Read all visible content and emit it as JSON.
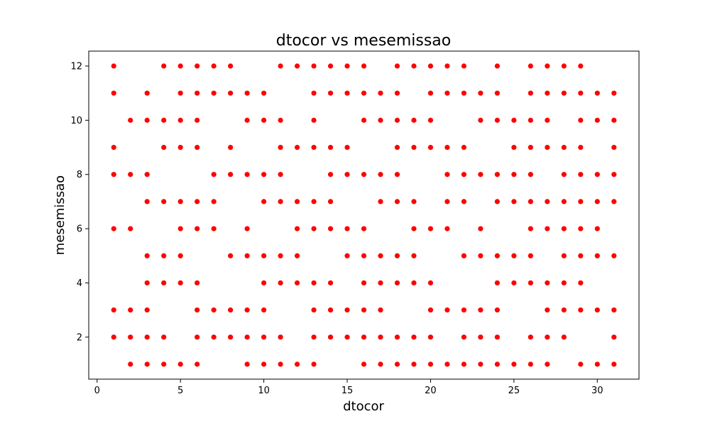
{
  "chart_data": {
    "type": "scatter",
    "title": "dtocor vs mesemissao",
    "xlabel": "dtocor",
    "ylabel": "mesemissao",
    "xlim": [
      -0.5,
      32.5
    ],
    "ylim": [
      0.45,
      12.55
    ],
    "xticks": [
      0,
      5,
      10,
      15,
      20,
      25,
      30
    ],
    "yticks": [
      2,
      4,
      6,
      8,
      10,
      12
    ],
    "grid": false,
    "marker_color": "#ff0000",
    "series": [
      {
        "points": [
          [
            1,
            12
          ],
          [
            4,
            12
          ],
          [
            5,
            12
          ],
          [
            6,
            12
          ],
          [
            7,
            12
          ],
          [
            8,
            12
          ],
          [
            11,
            12
          ],
          [
            12,
            12
          ],
          [
            13,
            12
          ],
          [
            14,
            12
          ],
          [
            15,
            12
          ],
          [
            16,
            12
          ],
          [
            18,
            12
          ],
          [
            19,
            12
          ],
          [
            20,
            12
          ],
          [
            21,
            12
          ],
          [
            22,
            12
          ],
          [
            24,
            12
          ],
          [
            26,
            12
          ],
          [
            27,
            12
          ],
          [
            28,
            12
          ],
          [
            29,
            12
          ],
          [
            1,
            11
          ],
          [
            3,
            11
          ],
          [
            5,
            11
          ],
          [
            6,
            11
          ],
          [
            7,
            11
          ],
          [
            8,
            11
          ],
          [
            9,
            11
          ],
          [
            10,
            11
          ],
          [
            13,
            11
          ],
          [
            14,
            11
          ],
          [
            15,
            11
          ],
          [
            16,
            11
          ],
          [
            17,
            11
          ],
          [
            18,
            11
          ],
          [
            20,
            11
          ],
          [
            21,
            11
          ],
          [
            22,
            11
          ],
          [
            23,
            11
          ],
          [
            24,
            11
          ],
          [
            26,
            11
          ],
          [
            27,
            11
          ],
          [
            28,
            11
          ],
          [
            29,
            11
          ],
          [
            30,
            11
          ],
          [
            31,
            11
          ],
          [
            2,
            10
          ],
          [
            3,
            10
          ],
          [
            4,
            10
          ],
          [
            5,
            10
          ],
          [
            6,
            10
          ],
          [
            9,
            10
          ],
          [
            10,
            10
          ],
          [
            11,
            10
          ],
          [
            13,
            10
          ],
          [
            16,
            10
          ],
          [
            17,
            10
          ],
          [
            18,
            10
          ],
          [
            19,
            10
          ],
          [
            20,
            10
          ],
          [
            23,
            10
          ],
          [
            24,
            10
          ],
          [
            25,
            10
          ],
          [
            26,
            10
          ],
          [
            27,
            10
          ],
          [
            29,
            10
          ],
          [
            30,
            10
          ],
          [
            31,
            10
          ],
          [
            1,
            9
          ],
          [
            4,
            9
          ],
          [
            5,
            9
          ],
          [
            6,
            9
          ],
          [
            8,
            9
          ],
          [
            11,
            9
          ],
          [
            12,
            9
          ],
          [
            13,
            9
          ],
          [
            14,
            9
          ],
          [
            15,
            9
          ],
          [
            18,
            9
          ],
          [
            19,
            9
          ],
          [
            20,
            9
          ],
          [
            21,
            9
          ],
          [
            22,
            9
          ],
          [
            25,
            9
          ],
          [
            26,
            9
          ],
          [
            27,
            9
          ],
          [
            28,
            9
          ],
          [
            29,
            9
          ],
          [
            31,
            9
          ],
          [
            1,
            8
          ],
          [
            2,
            8
          ],
          [
            3,
            8
          ],
          [
            7,
            8
          ],
          [
            8,
            8
          ],
          [
            9,
            8
          ],
          [
            10,
            8
          ],
          [
            11,
            8
          ],
          [
            14,
            8
          ],
          [
            15,
            8
          ],
          [
            16,
            8
          ],
          [
            17,
            8
          ],
          [
            18,
            8
          ],
          [
            21,
            8
          ],
          [
            22,
            8
          ],
          [
            23,
            8
          ],
          [
            24,
            8
          ],
          [
            25,
            8
          ],
          [
            26,
            8
          ],
          [
            28,
            8
          ],
          [
            29,
            8
          ],
          [
            30,
            8
          ],
          [
            31,
            8
          ],
          [
            3,
            7
          ],
          [
            4,
            7
          ],
          [
            5,
            7
          ],
          [
            6,
            7
          ],
          [
            7,
            7
          ],
          [
            10,
            7
          ],
          [
            11,
            7
          ],
          [
            12,
            7
          ],
          [
            13,
            7
          ],
          [
            14,
            7
          ],
          [
            17,
            7
          ],
          [
            18,
            7
          ],
          [
            19,
            7
          ],
          [
            21,
            7
          ],
          [
            22,
            7
          ],
          [
            24,
            7
          ],
          [
            25,
            7
          ],
          [
            26,
            7
          ],
          [
            27,
            7
          ],
          [
            28,
            7
          ],
          [
            29,
            7
          ],
          [
            30,
            7
          ],
          [
            31,
            7
          ],
          [
            1,
            6
          ],
          [
            2,
            6
          ],
          [
            5,
            6
          ],
          [
            6,
            6
          ],
          [
            7,
            6
          ],
          [
            9,
            6
          ],
          [
            12,
            6
          ],
          [
            13,
            6
          ],
          [
            14,
            6
          ],
          [
            15,
            6
          ],
          [
            16,
            6
          ],
          [
            19,
            6
          ],
          [
            20,
            6
          ],
          [
            21,
            6
          ],
          [
            23,
            6
          ],
          [
            26,
            6
          ],
          [
            27,
            6
          ],
          [
            28,
            6
          ],
          [
            29,
            6
          ],
          [
            30,
            6
          ],
          [
            3,
            5
          ],
          [
            4,
            5
          ],
          [
            5,
            5
          ],
          [
            8,
            5
          ],
          [
            9,
            5
          ],
          [
            10,
            5
          ],
          [
            11,
            5
          ],
          [
            12,
            5
          ],
          [
            15,
            5
          ],
          [
            16,
            5
          ],
          [
            17,
            5
          ],
          [
            18,
            5
          ],
          [
            19,
            5
          ],
          [
            22,
            5
          ],
          [
            23,
            5
          ],
          [
            24,
            5
          ],
          [
            25,
            5
          ],
          [
            26,
            5
          ],
          [
            28,
            5
          ],
          [
            29,
            5
          ],
          [
            30,
            5
          ],
          [
            31,
            5
          ],
          [
            3,
            4
          ],
          [
            4,
            4
          ],
          [
            5,
            4
          ],
          [
            6,
            4
          ],
          [
            10,
            4
          ],
          [
            11,
            4
          ],
          [
            12,
            4
          ],
          [
            13,
            4
          ],
          [
            14,
            4
          ],
          [
            16,
            4
          ],
          [
            17,
            4
          ],
          [
            18,
            4
          ],
          [
            19,
            4
          ],
          [
            20,
            4
          ],
          [
            24,
            4
          ],
          [
            25,
            4
          ],
          [
            26,
            4
          ],
          [
            27,
            4
          ],
          [
            28,
            4
          ],
          [
            29,
            4
          ],
          [
            1,
            3
          ],
          [
            2,
            3
          ],
          [
            3,
            3
          ],
          [
            6,
            3
          ],
          [
            7,
            3
          ],
          [
            8,
            3
          ],
          [
            9,
            3
          ],
          [
            10,
            3
          ],
          [
            13,
            3
          ],
          [
            14,
            3
          ],
          [
            15,
            3
          ],
          [
            16,
            3
          ],
          [
            17,
            3
          ],
          [
            20,
            3
          ],
          [
            21,
            3
          ],
          [
            22,
            3
          ],
          [
            23,
            3
          ],
          [
            24,
            3
          ],
          [
            27,
            3
          ],
          [
            28,
            3
          ],
          [
            29,
            3
          ],
          [
            30,
            3
          ],
          [
            31,
            3
          ],
          [
            1,
            2
          ],
          [
            2,
            2
          ],
          [
            3,
            2
          ],
          [
            4,
            2
          ],
          [
            6,
            2
          ],
          [
            7,
            2
          ],
          [
            8,
            2
          ],
          [
            9,
            2
          ],
          [
            10,
            2
          ],
          [
            11,
            2
          ],
          [
            13,
            2
          ],
          [
            14,
            2
          ],
          [
            15,
            2
          ],
          [
            16,
            2
          ],
          [
            17,
            2
          ],
          [
            18,
            2
          ],
          [
            19,
            2
          ],
          [
            20,
            2
          ],
          [
            22,
            2
          ],
          [
            23,
            2
          ],
          [
            24,
            2
          ],
          [
            26,
            2
          ],
          [
            27,
            2
          ],
          [
            28,
            2
          ],
          [
            31,
            2
          ],
          [
            2,
            1
          ],
          [
            3,
            1
          ],
          [
            4,
            1
          ],
          [
            5,
            1
          ],
          [
            6,
            1
          ],
          [
            9,
            1
          ],
          [
            10,
            1
          ],
          [
            11,
            1
          ],
          [
            12,
            1
          ],
          [
            13,
            1
          ],
          [
            16,
            1
          ],
          [
            17,
            1
          ],
          [
            18,
            1
          ],
          [
            19,
            1
          ],
          [
            20,
            1
          ],
          [
            21,
            1
          ],
          [
            22,
            1
          ],
          [
            23,
            1
          ],
          [
            24,
            1
          ],
          [
            25,
            1
          ],
          [
            26,
            1
          ],
          [
            27,
            1
          ],
          [
            29,
            1
          ],
          [
            30,
            1
          ],
          [
            31,
            1
          ]
        ]
      }
    ]
  }
}
